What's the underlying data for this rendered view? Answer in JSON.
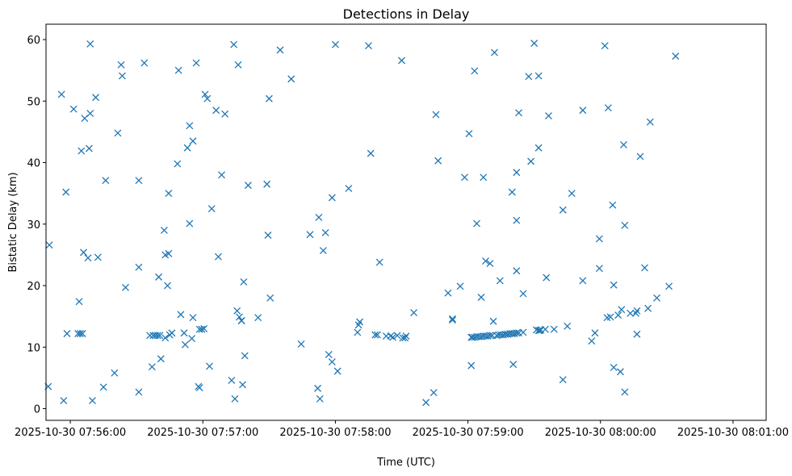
{
  "chart_data": {
    "type": "scatter",
    "title": "Detections in Delay",
    "xlabel": "Time (UTC)",
    "ylabel": "Bistatic Delay (km)",
    "x_unit": "seconds after 2025-10-30 07:56:00",
    "xlim": [
      -11,
      315
    ],
    "ylim": [
      -1.9,
      62.5
    ],
    "x_ticks": [
      {
        "value": 0,
        "label": "2025-10-30 07:56:00"
      },
      {
        "value": 60,
        "label": "2025-10-30 07:57:00"
      },
      {
        "value": 120,
        "label": "2025-10-30 07:58:00"
      },
      {
        "value": 180,
        "label": "2025-10-30 07:59:00"
      },
      {
        "value": 240,
        "label": "2025-10-30 08:00:00"
      },
      {
        "value": 300,
        "label": "2025-10-30 08:01:00"
      }
    ],
    "y_ticks": [
      {
        "value": 0,
        "label": "0"
      },
      {
        "value": 10,
        "label": "10"
      },
      {
        "value": 20,
        "label": "20"
      },
      {
        "value": 30,
        "label": "30"
      },
      {
        "value": 40,
        "label": "40"
      },
      {
        "value": 50,
        "label": "50"
      },
      {
        "value": 60,
        "label": "60"
      }
    ],
    "marker": "x",
    "color": "#1f77b4",
    "series": [
      {
        "name": "Detections",
        "points": [
          [
            -10,
            3.6
          ],
          [
            -9.5,
            26.6
          ],
          [
            -4,
            51.1
          ],
          [
            -3,
            1.3
          ],
          [
            -2,
            35.2
          ],
          [
            -1.5,
            12.2
          ],
          [
            1.5,
            48.7
          ],
          [
            3.5,
            12.2
          ],
          [
            4,
            17.4
          ],
          [
            4.5,
            12.2
          ],
          [
            5,
            41.9
          ],
          [
            5.5,
            12.2
          ],
          [
            6,
            25.4
          ],
          [
            6.5,
            47.2
          ],
          [
            8,
            24.5
          ],
          [
            8.5,
            42.3
          ],
          [
            9,
            48.0
          ],
          [
            9,
            59.3
          ],
          [
            10,
            1.3
          ],
          [
            11.5,
            50.6
          ],
          [
            12.5,
            24.6
          ],
          [
            15,
            3.5
          ],
          [
            16,
            37.1
          ],
          [
            20,
            5.8
          ],
          [
            21.5,
            44.8
          ],
          [
            23,
            55.9
          ],
          [
            23.5,
            54.1
          ],
          [
            25,
            19.7
          ],
          [
            31,
            37.1
          ],
          [
            31,
            2.7
          ],
          [
            31,
            23.0
          ],
          [
            33.5,
            56.2
          ],
          [
            36,
            11.9
          ],
          [
            37,
            6.8
          ],
          [
            37.5,
            11.9
          ],
          [
            38.5,
            11.9
          ],
          [
            39.5,
            11.9
          ],
          [
            40,
            21.4
          ],
          [
            40.5,
            11.9
          ],
          [
            41,
            8.1
          ],
          [
            42.5,
            29.0
          ],
          [
            43,
            11.5
          ],
          [
            43,
            25.0
          ],
          [
            44,
            20.0
          ],
          [
            44.5,
            25.2
          ],
          [
            44.5,
            35.0
          ],
          [
            45,
            12.0
          ],
          [
            46,
            12.3
          ],
          [
            48.5,
            39.8
          ],
          [
            49,
            55.0
          ],
          [
            50,
            15.3
          ],
          [
            51.5,
            12.3
          ],
          [
            52,
            10.4
          ],
          [
            53,
            42.4
          ],
          [
            54,
            46.0
          ],
          [
            54,
            30.1
          ],
          [
            55,
            11.4
          ],
          [
            55.5,
            14.8
          ],
          [
            55.5,
            43.5
          ],
          [
            57,
            56.2
          ],
          [
            58,
            3.6
          ],
          [
            58.5,
            12.9
          ],
          [
            58.5,
            3.4
          ],
          [
            59.5,
            12.9
          ],
          [
            60.5,
            13.0
          ],
          [
            61,
            51.1
          ],
          [
            62,
            50.4
          ],
          [
            63,
            6.9
          ],
          [
            64,
            32.5
          ],
          [
            66,
            48.5
          ],
          [
            67,
            24.7
          ],
          [
            68.5,
            38.0
          ],
          [
            70,
            47.9
          ],
          [
            73,
            4.6
          ],
          [
            74,
            59.2
          ],
          [
            74.5,
            1.6
          ],
          [
            75.5,
            15.9
          ],
          [
            76,
            55.9
          ],
          [
            76.5,
            14.9
          ],
          [
            77.5,
            14.3
          ],
          [
            77.5,
            14.3
          ],
          [
            78,
            3.9
          ],
          [
            78.5,
            20.6
          ],
          [
            79,
            8.6
          ],
          [
            80.5,
            36.3
          ],
          [
            85,
            14.8
          ],
          [
            89,
            36.5
          ],
          [
            89.5,
            28.2
          ],
          [
            90,
            50.4
          ],
          [
            90.5,
            18.0
          ],
          [
            95,
            58.3
          ],
          [
            100,
            53.6
          ],
          [
            104.5,
            10.5
          ],
          [
            108.5,
            28.3
          ],
          [
            112,
            3.3
          ],
          [
            112.5,
            31.1
          ],
          [
            113,
            1.6
          ],
          [
            114.5,
            25.7
          ],
          [
            115.5,
            28.6
          ],
          [
            117,
            8.8
          ],
          [
            118.5,
            34.3
          ],
          [
            118.5,
            7.6
          ],
          [
            120,
            59.2
          ],
          [
            121,
            6.1
          ],
          [
            126,
            35.8
          ],
          [
            130,
            12.4
          ],
          [
            130.5,
            13.6
          ],
          [
            131,
            14.1
          ],
          [
            135,
            59.0
          ],
          [
            136,
            41.5
          ],
          [
            138,
            12.0
          ],
          [
            139,
            12.0
          ],
          [
            140,
            23.8
          ],
          [
            143,
            11.8
          ],
          [
            145,
            11.8
          ],
          [
            146,
            11.6
          ],
          [
            148,
            11.9
          ],
          [
            150,
            56.6
          ],
          [
            150.5,
            11.5
          ],
          [
            151.5,
            11.5
          ],
          [
            152,
            11.8
          ],
          [
            155.5,
            15.6
          ],
          [
            161,
            1.0
          ],
          [
            164.5,
            2.6
          ],
          [
            165.5,
            47.8
          ],
          [
            166.5,
            40.3
          ],
          [
            171,
            18.8
          ],
          [
            173,
            14.4
          ],
          [
            173,
            14.6
          ],
          [
            176.5,
            19.9
          ],
          [
            178.5,
            37.6
          ],
          [
            180.5,
            44.7
          ],
          [
            181.5,
            11.6
          ],
          [
            181.5,
            7.0
          ],
          [
            182,
            11.6
          ],
          [
            183,
            11.6
          ],
          [
            183,
            54.9
          ],
          [
            184,
            30.1
          ],
          [
            184,
            11.7
          ],
          [
            185,
            11.7
          ],
          [
            186,
            11.7
          ],
          [
            186,
            18.1
          ],
          [
            187,
            11.8
          ],
          [
            187,
            37.6
          ],
          [
            188,
            11.8
          ],
          [
            188,
            24.0
          ],
          [
            189,
            11.8
          ],
          [
            190,
            23.6
          ],
          [
            190,
            11.9
          ],
          [
            191,
            11.9
          ],
          [
            191.5,
            14.2
          ],
          [
            192,
            57.9
          ],
          [
            193,
            11.9
          ],
          [
            194,
            12.0
          ],
          [
            194.5,
            20.8
          ],
          [
            195,
            12.0
          ],
          [
            196,
            12.0
          ],
          [
            197,
            12.1
          ],
          [
            198,
            12.1
          ],
          [
            199,
            12.2
          ],
          [
            200,
            12.2
          ],
          [
            200,
            35.2
          ],
          [
            200.5,
            7.2
          ],
          [
            201,
            12.2
          ],
          [
            202,
            12.3
          ],
          [
            202,
            38.4
          ],
          [
            202,
            22.4
          ],
          [
            202,
            30.6
          ],
          [
            203,
            12.3
          ],
          [
            203,
            48.1
          ],
          [
            205,
            18.7
          ],
          [
            205,
            12.4
          ],
          [
            207.5,
            54.0
          ],
          [
            208.5,
            40.2
          ],
          [
            210,
            59.4
          ],
          [
            211,
            12.8
          ],
          [
            212,
            12.7
          ],
          [
            212,
            54.1
          ],
          [
            212,
            42.4
          ],
          [
            212.5,
            12.7
          ],
          [
            213,
            12.8
          ],
          [
            215,
            12.9
          ],
          [
            215.5,
            21.3
          ],
          [
            216.5,
            47.6
          ],
          [
            219,
            12.9
          ],
          [
            223,
            4.7
          ],
          [
            223,
            32.3
          ],
          [
            225,
            13.4
          ],
          [
            227,
            35.0
          ],
          [
            232,
            48.5
          ],
          [
            232,
            20.8
          ],
          [
            236,
            11.0
          ],
          [
            237.5,
            12.3
          ],
          [
            239.5,
            27.6
          ],
          [
            239.5,
            22.8
          ],
          [
            242,
            59.0
          ],
          [
            243,
            14.8
          ],
          [
            243.5,
            48.9
          ],
          [
            244.5,
            14.9
          ],
          [
            245.5,
            33.1
          ],
          [
            246,
            20.1
          ],
          [
            246,
            6.7
          ],
          [
            248,
            15.2
          ],
          [
            249,
            6.0
          ],
          [
            249.5,
            16.1
          ],
          [
            250.5,
            42.9
          ],
          [
            251,
            29.8
          ],
          [
            251,
            2.7
          ],
          [
            253.5,
            15.5
          ],
          [
            256,
            15.5
          ],
          [
            256.5,
            15.9
          ],
          [
            256.5,
            12.1
          ],
          [
            258,
            41.0
          ],
          [
            260,
            22.9
          ],
          [
            261.5,
            16.3
          ],
          [
            262.5,
            46.6
          ],
          [
            265.5,
            18.0
          ],
          [
            271,
            19.9
          ],
          [
            274,
            57.3
          ]
        ]
      }
    ]
  }
}
